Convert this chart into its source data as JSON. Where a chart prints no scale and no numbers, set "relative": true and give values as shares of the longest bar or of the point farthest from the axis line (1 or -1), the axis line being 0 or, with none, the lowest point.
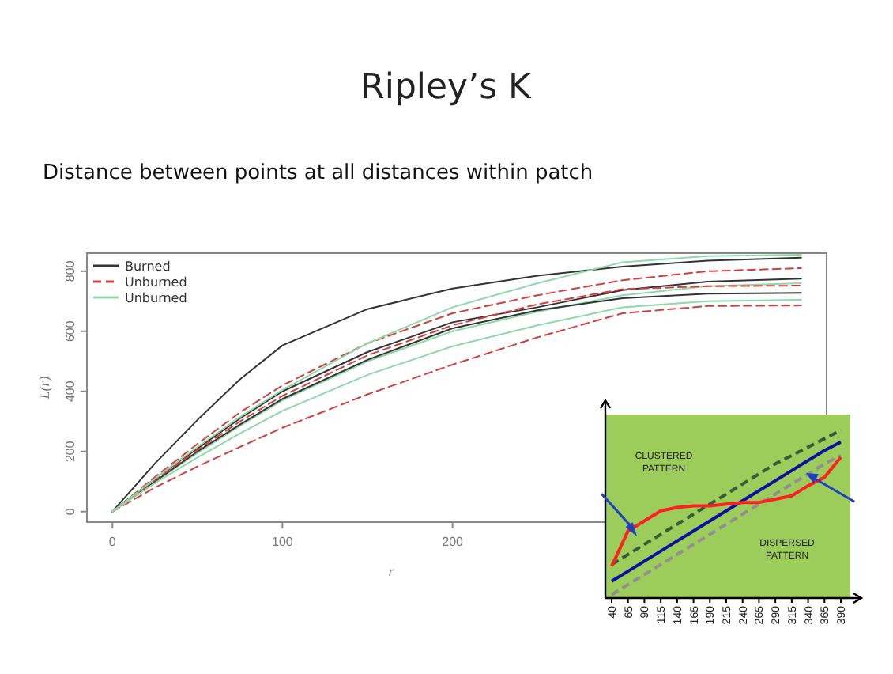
{
  "chart_data": [
    {
      "type": "line",
      "title": "Ripley’s K",
      "subtitle": "Distance between points at all distances within patch",
      "xlabel": "r",
      "ylabel": "L(r)",
      "x": [
        0,
        25,
        50,
        75,
        100,
        150,
        200,
        250,
        300,
        350,
        405
      ],
      "xlim": [
        -15,
        420
      ],
      "xticks": [
        0,
        100,
        200
      ],
      "ylim": [
        -35,
        860
      ],
      "yticks": [
        0,
        200,
        400,
        600,
        800
      ],
      "grid": false,
      "legend": "top left",
      "marker": "none",
      "series": [
        {
          "name": "Burned",
          "color": "#333333",
          "line_style": "solid",
          "values": [
            0,
            160,
            305,
            440,
            553,
            674,
            742,
            785,
            815,
            835,
            845
          ]
        },
        {
          "name": "Unburned",
          "color": "#d04040",
          "line_style": "dashed",
          "values": [
            0,
            115,
            225,
            330,
            420,
            560,
            660,
            720,
            770,
            800,
            810
          ]
        },
        {
          "name": "Unburned",
          "color": "#90d8a8",
          "line_style": "solid",
          "values": [
            0,
            100,
            195,
            285,
            370,
            500,
            600,
            665,
            720,
            750,
            760
          ]
        },
        {
          "color": "#333333",
          "line_style": "solid",
          "values": [
            0,
            110,
            210,
            310,
            400,
            531,
            630,
            680,
            737,
            765,
            775
          ]
        },
        {
          "color": "#333333",
          "line_style": "solid",
          "values": [
            0,
            100,
            200,
            290,
            375,
            505,
            610,
            670,
            710,
            725,
            728
          ]
        },
        {
          "color": "#d04040",
          "line_style": "dashed",
          "values": [
            0,
            80,
            150,
            215,
            279,
            390,
            489,
            580,
            660,
            684,
            686
          ]
        },
        {
          "color": "#d04040",
          "line_style": "dashed",
          "values": [
            0,
            105,
            205,
            300,
            385,
            520,
            620,
            690,
            740,
            750,
            752
          ]
        },
        {
          "color": "#90d8a8",
          "line_style": "solid",
          "values": [
            0,
            110,
            215,
            315,
            405,
            560,
            680,
            760,
            830,
            850,
            855
          ]
        },
        {
          "color": "#90d8a8",
          "line_style": "solid",
          "values": [
            0,
            95,
            180,
            260,
            335,
            455,
            550,
            620,
            680,
            700,
            705
          ]
        }
      ]
    },
    {
      "type": "line",
      "relative": true,
      "categories": [
        "40",
        "65",
        "90",
        "115",
        "140",
        "165",
        "190",
        "215",
        "240",
        "265",
        "290",
        "315",
        "340",
        "365",
        "390"
      ],
      "annotations": [
        "CLUSTERED PATTERN",
        "DISPERSED PATTERN"
      ],
      "series": [
        {
          "color": "#3a5a3a",
          "line_style": "dashed",
          "values": [
            0.2,
            0.26,
            0.32,
            0.38,
            0.44,
            0.5,
            0.56,
            0.62,
            0.68,
            0.74,
            0.8,
            0.85,
            0.9,
            0.95,
            1
          ]
        },
        {
          "color": "#1010a0",
          "line_style": "solid",
          "values": [
            0.1,
            0.16,
            0.22,
            0.28,
            0.34,
            0.4,
            0.46,
            0.52,
            0.58,
            0.64,
            0.7,
            0.76,
            0.82,
            0.88,
            0.93
          ]
        },
        {
          "color": "#909090",
          "line_style": "dashed",
          "values": [
            0.02,
            0.08,
            0.14,
            0.2,
            0.26,
            0.32,
            0.38,
            0.44,
            0.5,
            0.56,
            0.62,
            0.68,
            0.74,
            0.8,
            0.85
          ]
        },
        {
          "color": "#ff2020",
          "line_style": "solid",
          "values": [
            0.19,
            0.4,
            0.46,
            0.52,
            0.54,
            0.55,
            0.55,
            0.56,
            0.57,
            0.57,
            0.59,
            0.61,
            0.67,
            0.72,
            0.84
          ]
        }
      ]
    }
  ]
}
